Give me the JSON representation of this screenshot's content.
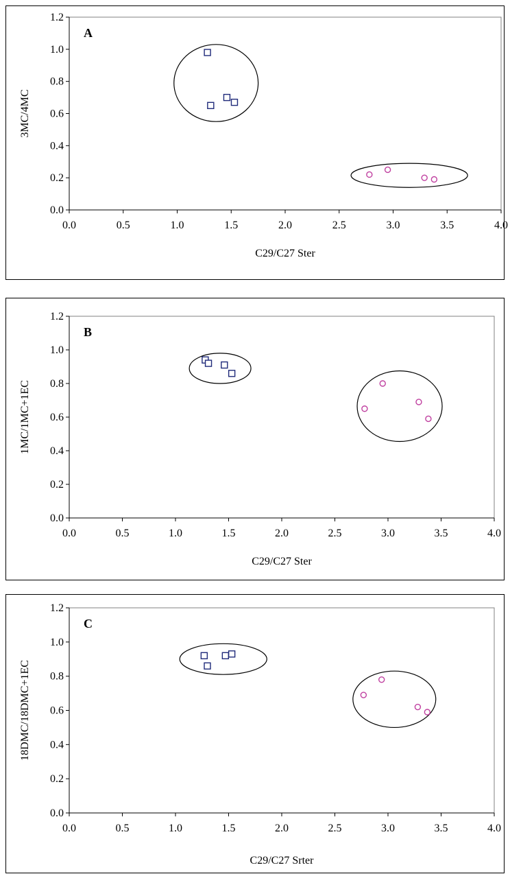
{
  "colors": {
    "group1": "#1f2a7a",
    "group2": "#c040a0",
    "axis": "#808080",
    "frame": "#000000"
  },
  "chart_data": [
    {
      "type": "scatter",
      "panel_label": "A",
      "xlabel": "C29/C27 Ster",
      "ylabel": "3MC/4MC",
      "xlim": [
        0,
        4.0
      ],
      "ylim": [
        0,
        1.2
      ],
      "x_ticks": [
        "0.0",
        "0.5",
        "1.0",
        "1.5",
        "2.0",
        "2.5",
        "3.0",
        "3.5",
        "4.0"
      ],
      "y_ticks": [
        "0.0",
        "0.2",
        "0.4",
        "0.6",
        "0.8",
        "1.0",
        "1.2"
      ],
      "grid": false,
      "series": [
        {
          "marker": "square",
          "color": "#1f2a7a",
          "points": [
            [
              1.28,
              0.98
            ],
            [
              1.31,
              0.65
            ],
            [
              1.46,
              0.7
            ],
            [
              1.53,
              0.67
            ]
          ]
        },
        {
          "marker": "circle",
          "color": "#c040a0",
          "points": [
            [
              2.78,
              0.22
            ],
            [
              2.95,
              0.25
            ],
            [
              3.29,
              0.2
            ],
            [
              3.38,
              0.19
            ]
          ]
        }
      ],
      "groupings": [
        {
          "shape": "ellipse",
          "cx": 1.36,
          "cy": 0.79,
          "rx": 0.39,
          "ry": 0.24
        },
        {
          "shape": "ellipse",
          "cx": 3.15,
          "cy": 0.215,
          "rx": 0.54,
          "ry": 0.075
        }
      ]
    },
    {
      "type": "scatter",
      "panel_label": "B",
      "xlabel": "C29/C27 Ster",
      "ylabel": "1MC/1MC+1EC",
      "xlim": [
        0,
        4.0
      ],
      "ylim": [
        0,
        1.2
      ],
      "x_ticks": [
        "0.0",
        "0.5",
        "1.0",
        "1.5",
        "2.0",
        "2.5",
        "3.0",
        "3.5",
        "4.0"
      ],
      "y_ticks": [
        "0.0",
        "0.2",
        "0.4",
        "0.6",
        "0.8",
        "1.0",
        "1.2"
      ],
      "grid": false,
      "series": [
        {
          "marker": "square",
          "color": "#1f2a7a",
          "points": [
            [
              1.28,
              0.94
            ],
            [
              1.31,
              0.92
            ],
            [
              1.46,
              0.91
            ],
            [
              1.53,
              0.86
            ]
          ]
        },
        {
          "marker": "circle",
          "color": "#c040a0",
          "points": [
            [
              2.78,
              0.65
            ],
            [
              2.95,
              0.8
            ],
            [
              3.29,
              0.69
            ],
            [
              3.38,
              0.59
            ]
          ]
        }
      ],
      "groupings": [
        {
          "shape": "ellipse",
          "cx": 1.42,
          "cy": 0.89,
          "rx": 0.29,
          "ry": 0.09
        },
        {
          "shape": "ellipse",
          "cx": 3.11,
          "cy": 0.665,
          "rx": 0.4,
          "ry": 0.21
        }
      ]
    },
    {
      "type": "scatter",
      "panel_label": "C",
      "xlabel": "C29/C27 Srter",
      "ylabel": "18DMC/18DMC+1EC",
      "xlim": [
        0,
        4.0
      ],
      "ylim": [
        0,
        1.2
      ],
      "x_ticks": [
        "0.0",
        "0.5",
        "1.0",
        "1.5",
        "2.0",
        "2.5",
        "3.0",
        "3.5",
        "4.0"
      ],
      "y_ticks": [
        "0.0",
        "0.2",
        "0.4",
        "0.6",
        "0.8",
        "1.0",
        "1.2"
      ],
      "grid": false,
      "series": [
        {
          "marker": "square",
          "color": "#1f2a7a",
          "points": [
            [
              1.27,
              0.92
            ],
            [
              1.3,
              0.86
            ],
            [
              1.47,
              0.92
            ],
            [
              1.53,
              0.93
            ]
          ]
        },
        {
          "marker": "circle",
          "color": "#c040a0",
          "points": [
            [
              2.77,
              0.69
            ],
            [
              2.94,
              0.78
            ],
            [
              3.28,
              0.62
            ],
            [
              3.37,
              0.59
            ]
          ]
        }
      ],
      "groupings": [
        {
          "shape": "ellipse",
          "cx": 1.45,
          "cy": 0.9,
          "rx": 0.41,
          "ry": 0.09
        },
        {
          "shape": "ellipse",
          "cx": 3.06,
          "cy": 0.665,
          "rx": 0.39,
          "ry": 0.165
        }
      ]
    }
  ]
}
